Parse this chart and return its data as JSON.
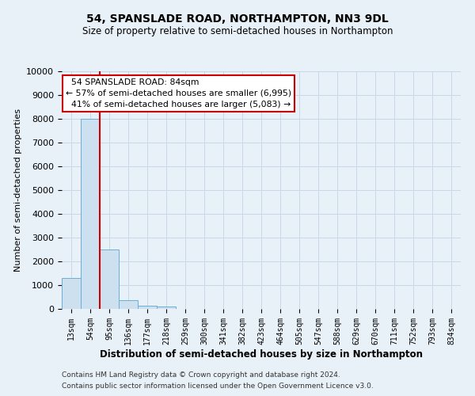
{
  "title": "54, SPANSLADE ROAD, NORTHAMPTON, NN3 9DL",
  "subtitle": "Size of property relative to semi-detached houses in Northampton",
  "xlabel": "Distribution of semi-detached houses by size in Northampton",
  "ylabel": "Number of semi-detached properties",
  "bar_labels": [
    "13sqm",
    "54sqm",
    "95sqm",
    "136sqm",
    "177sqm",
    "218sqm",
    "259sqm",
    "300sqm",
    "341sqm",
    "382sqm",
    "423sqm",
    "464sqm",
    "505sqm",
    "547sqm",
    "588sqm",
    "629sqm",
    "670sqm",
    "711sqm",
    "752sqm",
    "793sqm",
    "834sqm"
  ],
  "bar_values": [
    1300,
    8000,
    2500,
    380,
    150,
    100,
    0,
    0,
    0,
    0,
    0,
    0,
    0,
    0,
    0,
    0,
    0,
    0,
    0,
    0,
    0
  ],
  "bar_color": "#cce0f0",
  "bar_edge_color": "#6baed6",
  "property_sqm": 84,
  "property_label": "54 SPANSLADE ROAD: 84sqm",
  "pct_smaller": 57,
  "n_smaller": 6995,
  "pct_larger": 41,
  "n_larger": 5083,
  "annotation_box_color": "#ffffff",
  "annotation_box_edge": "#cc0000",
  "vline_color": "#cc0000",
  "ylim": [
    0,
    10000
  ],
  "yticks": [
    0,
    1000,
    2000,
    3000,
    4000,
    5000,
    6000,
    7000,
    8000,
    9000,
    10000
  ],
  "grid_color": "#c8d8e8",
  "bg_color": "#e8f0f8",
  "footer1": "Contains HM Land Registry data © Crown copyright and database right 2024.",
  "footer2": "Contains public sector information licensed under the Open Government Licence v3.0."
}
